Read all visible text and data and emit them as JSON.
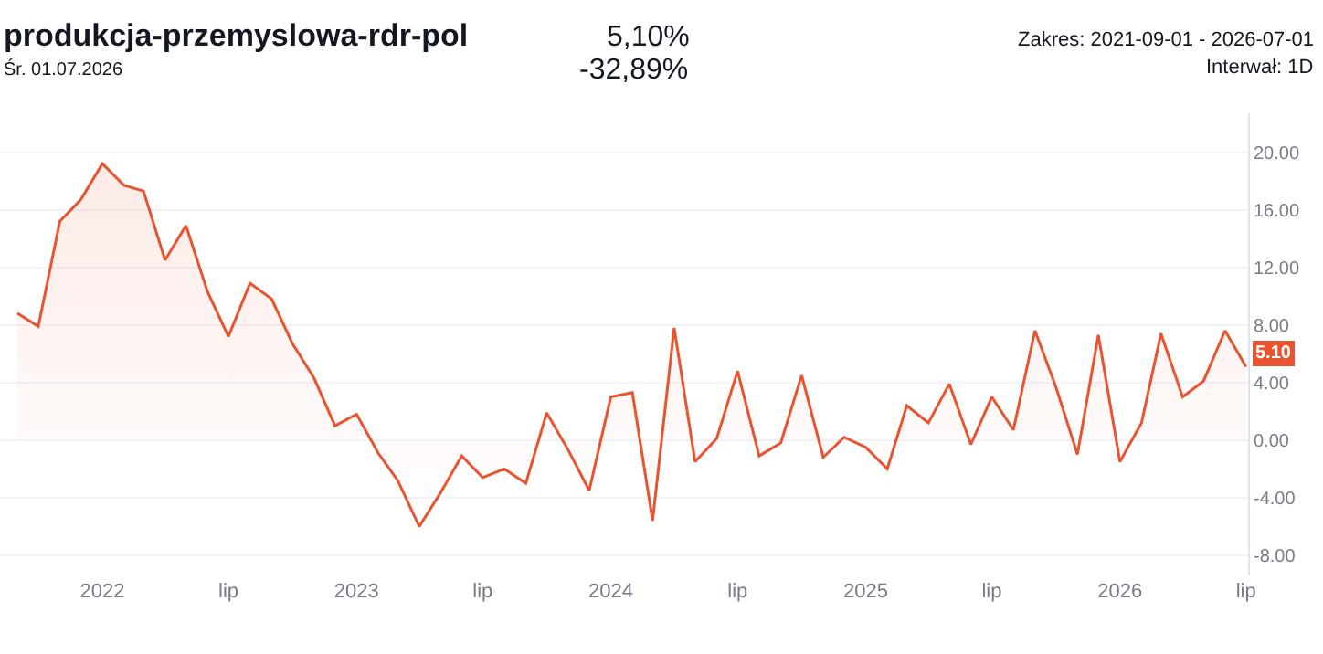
{
  "chart_data": {
    "type": "area",
    "title": "produkcja-przemyslowa-rdr-pol",
    "subtitle": "Śr. 01.07.2026",
    "annotations": [
      "5,10%",
      "-32,89%",
      "Zakres: 2021-09-01 - 2026-07-01",
      "Interwał: 1D",
      {
        "text": "5.10",
        "x": "2026-07",
        "y": 5.1
      }
    ],
    "x": [
      "2021-09",
      "2021-10",
      "2021-11",
      "2021-12",
      "2022-01",
      "2022-02",
      "2022-03",
      "2022-04",
      "2022-05",
      "2022-06",
      "2022-07",
      "2022-08",
      "2022-09",
      "2022-10",
      "2022-11",
      "2022-12",
      "2023-01",
      "2023-02",
      "2023-03",
      "2023-04",
      "2023-05",
      "2023-06",
      "2023-07",
      "2023-08",
      "2023-09",
      "2023-10",
      "2023-11",
      "2023-12",
      "2024-01",
      "2024-02",
      "2024-03",
      "2024-04",
      "2024-05",
      "2024-06",
      "2024-07",
      "2024-08",
      "2024-09",
      "2024-10",
      "2024-11",
      "2024-12",
      "2025-01",
      "2025-02",
      "2025-03",
      "2025-04",
      "2025-05",
      "2025-06",
      "2025-07",
      "2025-08",
      "2025-09",
      "2025-10",
      "2025-11",
      "2025-12",
      "2026-01",
      "2026-02",
      "2026-03",
      "2026-04",
      "2026-05",
      "2026-06",
      "2026-07"
    ],
    "series": [
      {
        "color": "#e8542f",
        "values": [
          8.8,
          7.9,
          15.2,
          16.7,
          19.2,
          17.7,
          17.3,
          12.5,
          14.9,
          10.3,
          7.2,
          10.9,
          9.8,
          6.7,
          4.3,
          1.0,
          1.8,
          -0.9,
          -2.8,
          -6.0,
          -3.7,
          -1.1,
          -2.6,
          -2.0,
          -3.0,
          1.9,
          -0.7,
          -3.5,
          3.0,
          3.3,
          -5.6,
          7.8,
          -1.5,
          0.1,
          4.8,
          -1.1,
          -0.2,
          4.5,
          -1.2,
          0.2,
          -0.5,
          -2.0,
          2.4,
          1.2,
          3.9,
          -0.3,
          3.0,
          0.7,
          7.6,
          3.7,
          -1.0,
          7.3,
          -1.5,
          1.2,
          7.4,
          3.0,
          4.1,
          7.6,
          5.1
        ]
      }
    ],
    "xlim": [
      "2021-08-07",
      "2026-07-04"
    ],
    "xticks": [
      {
        "value": "2022-01-01",
        "label": "2022"
      },
      {
        "value": "2022-07-01",
        "label": "lip"
      },
      {
        "value": "2023-01-01",
        "label": "2023"
      },
      {
        "value": "2023-07-01",
        "label": "lip"
      },
      {
        "value": "2024-01-01",
        "label": "2024"
      },
      {
        "value": "2024-07-01",
        "label": "lip"
      },
      {
        "value": "2025-01-01",
        "label": "2025"
      },
      {
        "value": "2025-07-01",
        "label": "lip"
      },
      {
        "value": "2026-01-01",
        "label": "2026"
      },
      {
        "value": "2026-07-01",
        "label": "lip"
      }
    ],
    "ylim": [
      -9.4,
      22.7
    ],
    "yticks": [
      {
        "value": -8,
        "label": "-8.00"
      },
      {
        "value": -4,
        "label": "-4.00"
      },
      {
        "value": 0,
        "label": "0.00"
      },
      {
        "value": 4,
        "label": "4.00"
      },
      {
        "value": 8,
        "label": "8.00"
      },
      {
        "value": 12,
        "label": "12.00"
      },
      {
        "value": 16,
        "label": "16.00"
      },
      {
        "value": 20,
        "label": "20.00"
      }
    ],
    "grid": "y",
    "marker": "none",
    "line_style": "solid"
  }
}
